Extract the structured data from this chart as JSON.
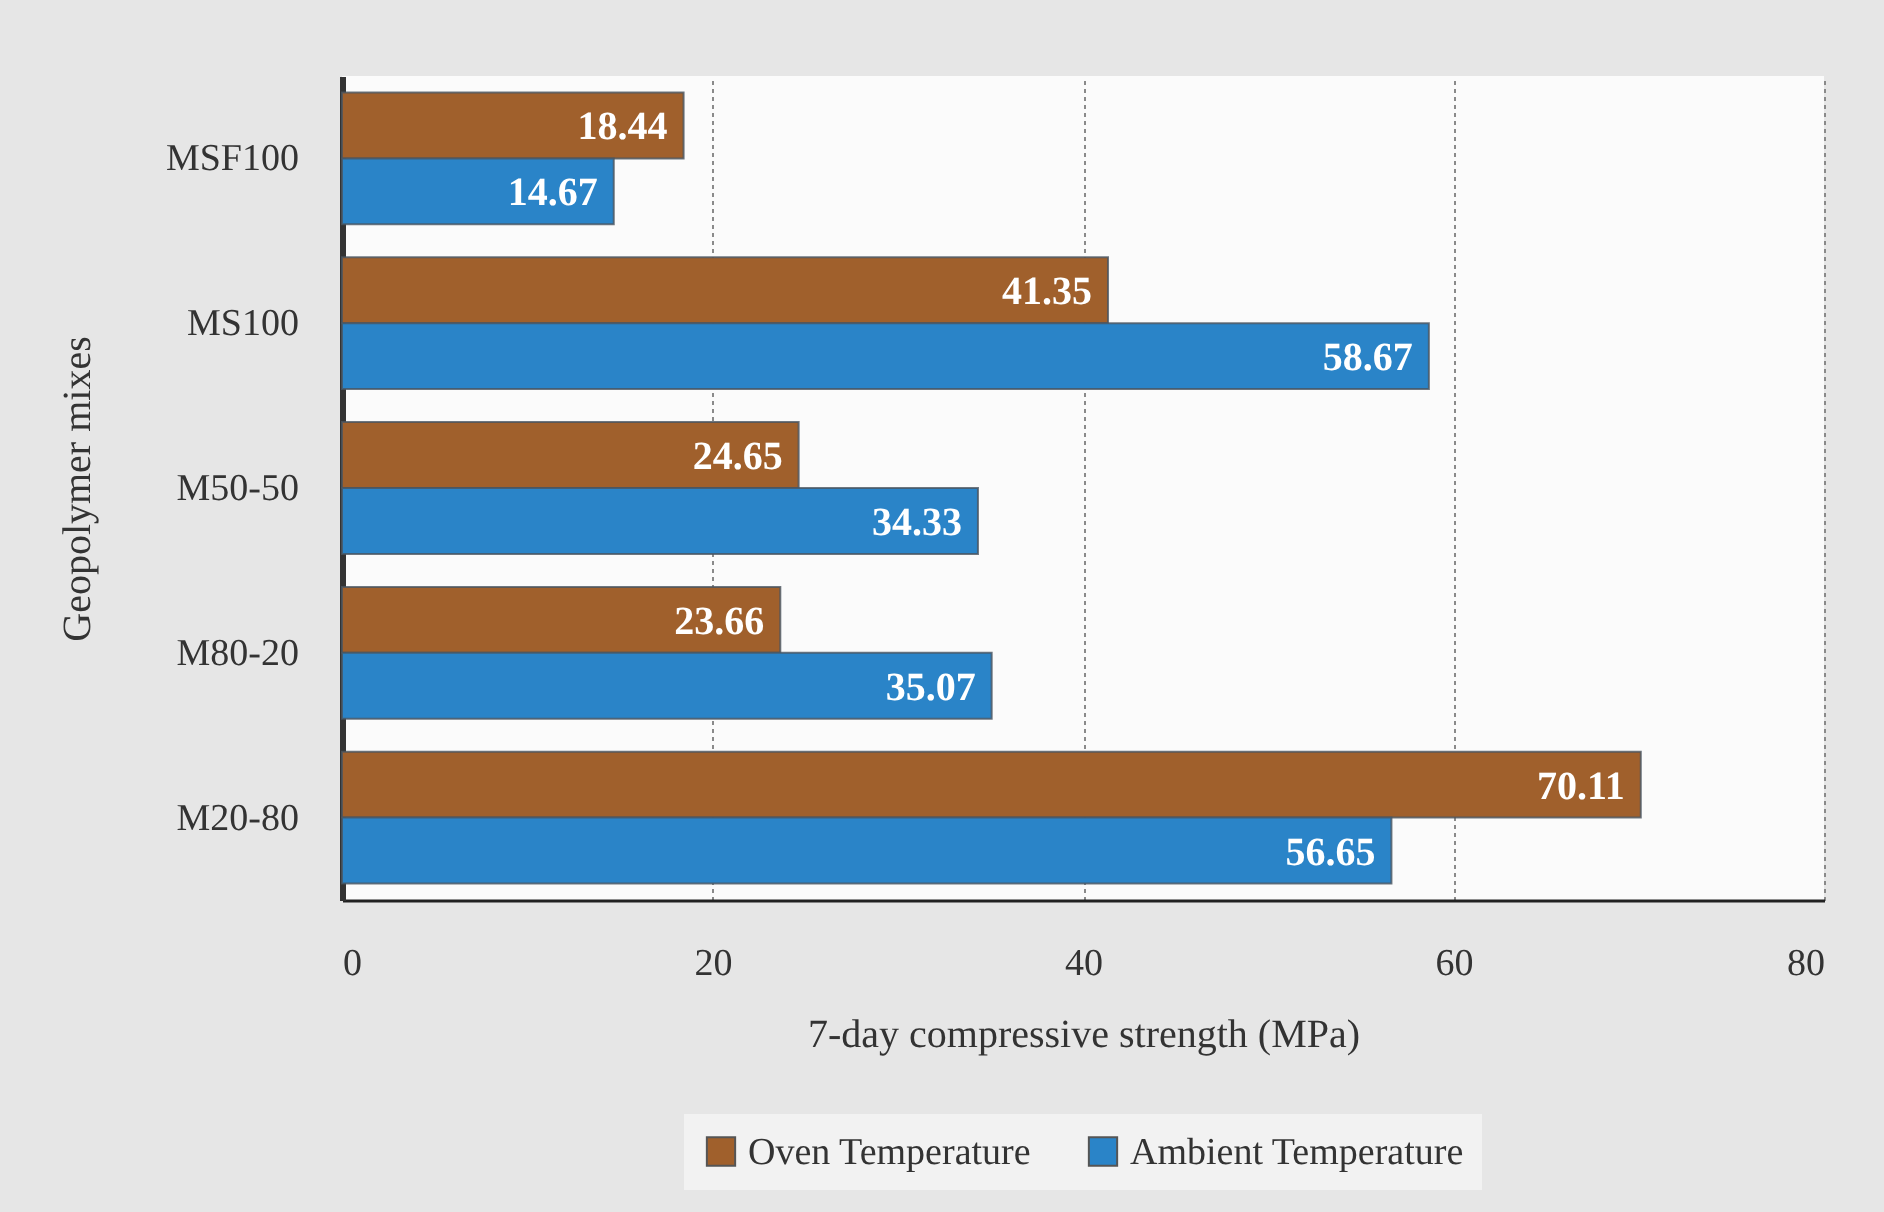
{
  "chart_data": {
    "type": "bar",
    "orientation": "horizontal",
    "xlabel": "7-day compressive strength (MPa)",
    "ylabel": "Geopolymer mixes",
    "categories": [
      "MSF100",
      "MS100",
      "M50-50",
      "M80-20",
      "M20-80"
    ],
    "series": [
      {
        "name": "Oven Temperature",
        "color": "#a0602c",
        "values": [
          18.44,
          41.35,
          24.65,
          23.66,
          70.11
        ]
      },
      {
        "name": "Ambient Temperature",
        "color": "#2a84c8",
        "values": [
          14.67,
          58.67,
          34.33,
          35.07,
          56.65
        ]
      }
    ],
    "xlim": [
      0,
      80
    ],
    "xticks": [
      0,
      20,
      40,
      60,
      80
    ],
    "grid": "x",
    "legend": "bottom",
    "data_labels": true
  }
}
